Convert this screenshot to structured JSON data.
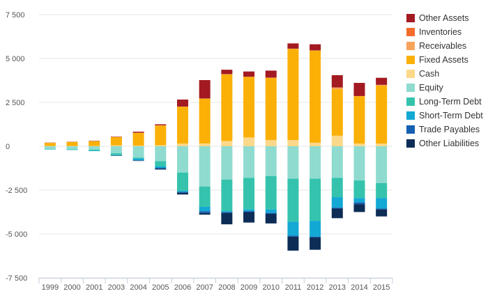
{
  "chart_data": {
    "type": "bar",
    "stacked": true,
    "title": "",
    "xlabel": "",
    "ylabel": "",
    "categories": [
      "1999",
      "2000",
      "2001",
      "2003",
      "2004",
      "2005",
      "2006",
      "2007",
      "2008",
      "2009",
      "2010",
      "2011",
      "2012",
      "2013",
      "2014",
      "2015"
    ],
    "ylim": [
      -7500,
      7500
    ],
    "yticks": [
      7500,
      5000,
      2500,
      0,
      -2500,
      -5000,
      -7500
    ],
    "ytick_labels": [
      "7 500",
      "5 000",
      "2 500",
      "0",
      "-2 500",
      "-5 000",
      "-7 500"
    ],
    "grid": true,
    "legend_position": "right",
    "series": [
      {
        "name": "Other Assets",
        "color": "#a31a22",
        "sign": "positive",
        "values": [
          10,
          10,
          15,
          20,
          60,
          60,
          400,
          1050,
          250,
          300,
          400,
          300,
          350,
          700,
          750,
          400
        ]
      },
      {
        "name": "Inventories",
        "color": "#f46b2c",
        "sign": "positive",
        "values": [
          0,
          0,
          0,
          0,
          0,
          0,
          0,
          0,
          0,
          0,
          0,
          0,
          0,
          0,
          0,
          0
        ]
      },
      {
        "name": "Receivables",
        "color": "#f7a35c",
        "sign": "positive",
        "values": [
          10,
          10,
          10,
          10,
          10,
          10,
          10,
          10,
          10,
          10,
          10,
          10,
          10,
          100,
          10,
          50
        ]
      },
      {
        "name": "Fixed Assets",
        "color": "#fbb007",
        "sign": "positive",
        "values": [
          170,
          220,
          270,
          470,
          720,
          1120,
          2100,
          2550,
          3800,
          3450,
          3550,
          5200,
          5250,
          2650,
          2700,
          3300
        ]
      },
      {
        "name": "Cash",
        "color": "#fcd88a",
        "sign": "positive",
        "values": [
          20,
          20,
          20,
          50,
          40,
          60,
          150,
          160,
          300,
          500,
          350,
          350,
          200,
          600,
          150,
          150
        ]
      },
      {
        "name": "Equity",
        "color": "#8fdbcf",
        "sign": "negative",
        "values": [
          -170,
          -170,
          -200,
          -400,
          -650,
          -850,
          -1500,
          -2300,
          -1900,
          -1800,
          -1700,
          -1850,
          -1850,
          -1800,
          -1950,
          -2100
        ]
      },
      {
        "name": "Long-Term Debt",
        "color": "#35c3ad",
        "sign": "negative",
        "values": [
          -20,
          -40,
          -60,
          -100,
          -50,
          -300,
          -1050,
          -1150,
          -1800,
          -1800,
          -1900,
          -2450,
          -2400,
          -1100,
          -1000,
          -850
        ]
      },
      {
        "name": "Short-Term Debt",
        "color": "#14a8d4",
        "sign": "negative",
        "values": [
          -10,
          -10,
          -20,
          -30,
          -100,
          -80,
          -50,
          -250,
          -50,
          -100,
          -200,
          -800,
          -900,
          -600,
          -250,
          -600
        ]
      },
      {
        "name": "Trade Payables",
        "color": "#1560b1",
        "sign": "negative",
        "values": [
          0,
          0,
          0,
          0,
          -20,
          -50,
          -50,
          -100,
          -50,
          -50,
          -50,
          -50,
          -50,
          -50,
          -100,
          -50
        ]
      },
      {
        "name": "Other Liabilities",
        "color": "#0d2d57",
        "sign": "negative",
        "values": [
          0,
          0,
          0,
          -20,
          -20,
          -50,
          -100,
          -100,
          -650,
          -600,
          -550,
          -800,
          -700,
          -550,
          -450,
          -400
        ]
      }
    ]
  }
}
